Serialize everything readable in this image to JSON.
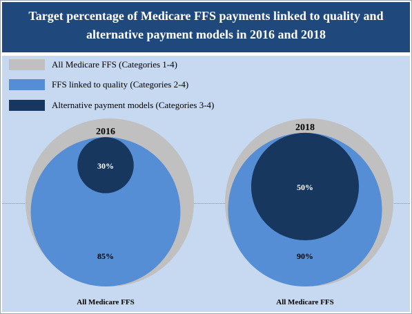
{
  "title": {
    "line1": "Target percentage of Medicare FFS payments linked to quality and",
    "line2": "alternative payment models in 2016 and 2018"
  },
  "legend": [
    {
      "label": "All Medicare FFS (Categories 1-4)",
      "color": "#c0c0c0"
    },
    {
      "label": "FFS linked to quality (Categories 2-4)",
      "color": "#558ed5"
    },
    {
      "label": "Alternative payment models (Categories 3-4)",
      "color": "#17375e"
    }
  ],
  "chart_data": {
    "type": "nested-circles",
    "title": "Target percentage of Medicare FFS payments linked to quality and alternative payment models in 2016 and 2018",
    "series": [
      {
        "name": "All Medicare FFS (Categories 1-4)",
        "color": "#c0c0c0"
      },
      {
        "name": "FFS linked to quality (Categories 2-4)",
        "color": "#558ed5"
      },
      {
        "name": "Alternative payment models (Categories 3-4)",
        "color": "#17375e"
      }
    ],
    "groups": [
      {
        "year": "2016",
        "base_label": "All Medicare FFS",
        "all_ffs": 100,
        "linked_to_quality": 85,
        "alternative_payment_models": 30,
        "linked_to_quality_label": "85%",
        "alternative_payment_models_label": "30%"
      },
      {
        "year": "2018",
        "base_label": "All Medicare FFS",
        "all_ffs": 100,
        "linked_to_quality": 90,
        "alternative_payment_models": 50,
        "linked_to_quality_label": "90%",
        "alternative_payment_models_label": "50%"
      }
    ]
  }
}
